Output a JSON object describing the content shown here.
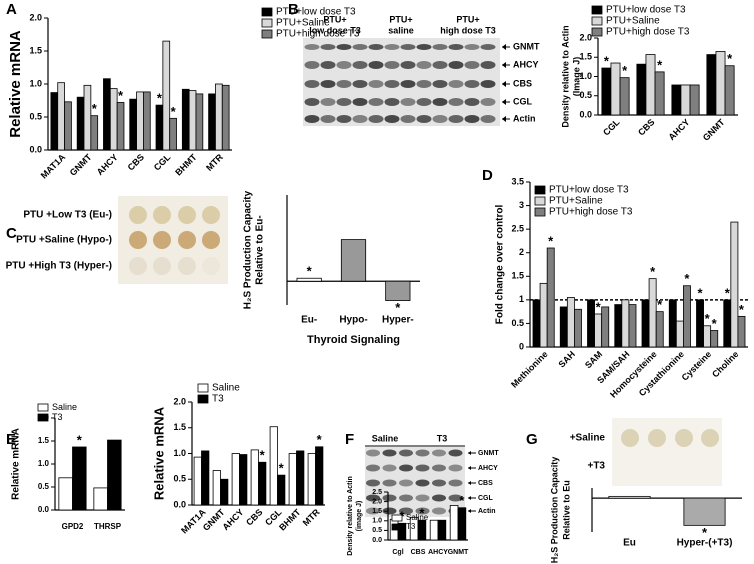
{
  "panel_labels": [
    "A",
    "B",
    "C",
    "D",
    "E",
    "F",
    "G"
  ],
  "blot_b": {
    "columns": [
      [
        "PTU+",
        "low dose T3"
      ],
      [
        "PTU+",
        "saline"
      ],
      [
        "PTU+",
        "high dose T3"
      ]
    ],
    "rows": [
      "GNMT",
      "AHCY",
      "CBS",
      "CGL",
      "Actin"
    ]
  },
  "dots_c": {
    "rows": [
      "PTU +Low T3 (Eu-)",
      "PTU +Saline (Hypo-)",
      "PTU +High T3 (Hyper-)"
    ]
  },
  "blot_f": {
    "columns": [
      "Saline",
      "T3"
    ],
    "rows": [
      "GNMT",
      "AHCY",
      "CBS",
      "CGL",
      "Actin"
    ]
  },
  "dots_g": {
    "rows": [
      "+Saline",
      "+T3"
    ]
  },
  "chart_data": [
    {
      "type": "bar",
      "ylabel": "Relative mRNA",
      "categories": [
        "MAT1A",
        "GNMT",
        "AHCY",
        "CBS",
        "CGL",
        "BHMT",
        "MTR"
      ],
      "series": [
        {
          "name": "PTU+low dose T3",
          "color": "#000000",
          "values": [
            0.87,
            0.8,
            1.08,
            0.77,
            0.68,
            0.92,
            0.85
          ],
          "annotations": [
            null,
            null,
            null,
            null,
            "*",
            null,
            null
          ]
        },
        {
          "name": "PTU+Saline",
          "color": "#d9d9d9",
          "values": [
            1.02,
            0.98,
            0.93,
            0.88,
            1.65,
            0.9,
            1.0
          ]
        },
        {
          "name": "PTU+high dose T3",
          "color": "#7f7f7f",
          "values": [
            0.73,
            0.52,
            0.72,
            0.88,
            0.48,
            0.85,
            0.98
          ],
          "annotations": [
            null,
            "*",
            "*",
            null,
            "*",
            null,
            null
          ]
        }
      ],
      "ylim": [
        0,
        2
      ],
      "yticks": [
        {
          "value": 0,
          "label": "0.0"
        },
        0.5,
        {
          "value": 1,
          "label": "1.0"
        },
        1.5,
        {
          "value": 2,
          "label": "2.0"
        }
      ]
    },
    {
      "type": "bar",
      "ylabel": [
        "Density relative to Actin",
        "(Image J)"
      ],
      "categories": [
        "CGL",
        "CBS",
        "AHCY",
        "GNMT"
      ],
      "series": [
        {
          "name": "PTU+low dose T3",
          "color": "#000000",
          "values": [
            1.22,
            1.32,
            0.78,
            1.57
          ],
          "annotations": [
            "*",
            null,
            null,
            null
          ]
        },
        {
          "name": "PTU+Saline",
          "color": "#d9d9d9",
          "values": [
            1.35,
            1.57,
            0.78,
            1.65
          ]
        },
        {
          "name": "PTU+high dose T3",
          "color": "#7f7f7f",
          "values": [
            0.97,
            1.12,
            0.78,
            1.28
          ],
          "annotations": [
            "*",
            "*",
            null,
            "*"
          ]
        }
      ],
      "ylim": [
        0,
        2
      ],
      "yticks": [
        {
          "value": 0,
          "label": "0.0"
        },
        0.5,
        {
          "value": 1,
          "label": "1.0"
        },
        1.5,
        {
          "value": 2,
          "label": "2.0"
        }
      ]
    },
    {
      "type": "bar",
      "ylabel": [
        "H₂S Production Capacity",
        "Relative to Eu-"
      ],
      "xlabel": "Thyroid Signaling",
      "categories": [
        "Eu-",
        "Hypo-",
        "Hyper-"
      ],
      "values": [
        1.1,
        2.4,
        0.35
      ],
      "colors": [
        "#ffffff",
        "#999999",
        "#999999"
      ],
      "annotations": [
        "*",
        null,
        "*"
      ],
      "baseline": 1,
      "ylim": [
        0.2,
        3.9
      ]
    },
    {
      "type": "bar",
      "ylabel": "Fold change over control",
      "categories": [
        "Methionine",
        "SAH",
        "SAM",
        "SAM/SAH",
        "Homocysteine",
        "Cystathionine",
        "Cysteine",
        "Choline"
      ],
      "series": [
        {
          "name": "PTU+low dose T3",
          "color": "#000000",
          "values": [
            1.0,
            0.85,
            1.0,
            0.9,
            1.0,
            1.0,
            1.0,
            1.0
          ],
          "annotations": [
            null,
            null,
            null,
            null,
            null,
            null,
            "*",
            "*"
          ]
        },
        {
          "name": "PTU+Saline",
          "color": "#d9d9d9",
          "values": [
            1.35,
            1.05,
            0.7,
            1.0,
            1.45,
            0.55,
            0.45,
            2.65
          ],
          "annotations": [
            null,
            null,
            "*",
            null,
            "*",
            null,
            "*",
            null
          ]
        },
        {
          "name": "PTU+high dose T3",
          "color": "#7f7f7f",
          "values": [
            2.1,
            0.8,
            0.85,
            0.9,
            0.75,
            1.3,
            0.35,
            0.65
          ],
          "annotations": [
            "*",
            null,
            null,
            null,
            "*",
            "*",
            "*",
            "*"
          ]
        }
      ],
      "reference_line": 1,
      "ylim": [
        0,
        3.5
      ],
      "yticks": [
        0,
        0.5,
        1,
        1.5,
        2,
        2.5,
        3,
        3.5
      ]
    },
    {
      "type": "bar",
      "ylabel": "Relative mRNA",
      "categories": [
        "GPD2",
        "THRSP"
      ],
      "series": [
        {
          "name": "Saline",
          "color": "#ffffff",
          "values": [
            0.7,
            0.48
          ]
        },
        {
          "name": "T3",
          "color": "#000000",
          "values": [
            1.37,
            1.52
          ],
          "annotations": [
            "*",
            null
          ]
        }
      ],
      "ylim": [
        0,
        2
      ],
      "yticks": [
        {
          "value": 0,
          "label": "0.0"
        },
        0.5,
        {
          "value": 1,
          "label": "1.0"
        },
        1.5,
        {
          "value": 2,
          "label": "2.0"
        }
      ]
    },
    {
      "type": "bar",
      "ylabel": "Relative mRNA",
      "categories": [
        "MAT1A",
        "GNMT",
        "AHCY",
        "CBS",
        "CGL",
        "BHMT",
        "MTR"
      ],
      "series": [
        {
          "name": "Saline",
          "color": "#ffffff",
          "values": [
            0.93,
            0.67,
            1.0,
            1.07,
            1.52,
            1.0,
            1.0
          ]
        },
        {
          "name": "T3",
          "color": "#000000",
          "values": [
            1.05,
            0.5,
            0.98,
            0.83,
            0.58,
            1.05,
            1.13
          ],
          "annotations": [
            null,
            null,
            null,
            "*",
            "*",
            null,
            "*"
          ]
        }
      ],
      "ylim": [
        0,
        2
      ],
      "yticks": [
        {
          "value": 0,
          "label": "0.0"
        },
        0.5,
        {
          "value": 1,
          "label": "1.0"
        },
        1.5,
        {
          "value": 2,
          "label": "2.0"
        }
      ]
    },
    {
      "type": "bar",
      "ylabel": [
        "Density relative to Actin",
        "(image J)"
      ],
      "categories": [
        "Cgl",
        "CBS",
        "AHCY",
        "GNMT"
      ],
      "series": [
        {
          "name": "Saline",
          "color": "#ffffff",
          "values": [
            1.08,
            1.18,
            1.03,
            1.8
          ]
        },
        {
          "name": "T3",
          "color": "#000000",
          "values": [
            0.87,
            1.03,
            1.03,
            1.68
          ],
          "annotations": [
            "*",
            "*",
            null,
            "*"
          ]
        }
      ],
      "ylim": [
        0,
        2.5
      ],
      "yticks": [
        {
          "value": 0,
          "label": "0.0"
        },
        0.5,
        {
          "value": 1,
          "label": "1.0"
        },
        1.5,
        {
          "value": 2,
          "label": "2.0"
        },
        2.5
      ]
    },
    {
      "type": "bar",
      "ylabel": [
        "H₂S Production Capacity",
        "Relative to Eu"
      ],
      "categories": [
        "Eu",
        "Hyper-(+T3)"
      ],
      "values": [
        1.05,
        0.22
      ],
      "colors": [
        "#ffffff",
        "#aaaaaa"
      ],
      "annotations": [
        null,
        "*"
      ],
      "baseline": 1,
      "ylim": [
        0.03,
        1.29
      ]
    }
  ]
}
